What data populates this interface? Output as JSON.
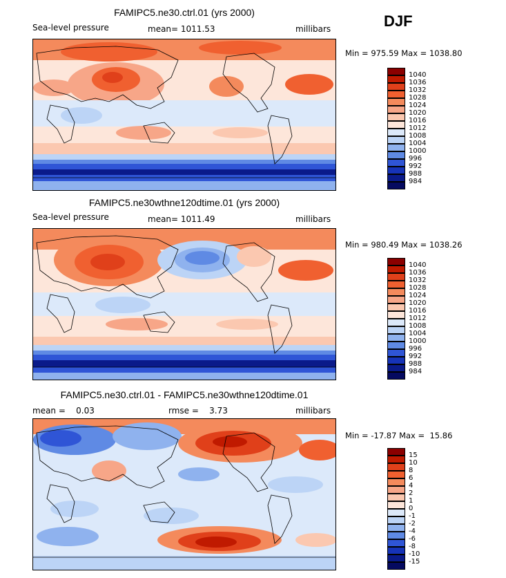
{
  "season": "DJF",
  "panels": [
    {
      "title": "FAMIPC5.ne30.ctrl.01 (yrs 2000)",
      "left_label": "Sea-level pressure",
      "center_label": "mean= 1011.53",
      "right_label": "millibars",
      "minmax": "Min = 975.59 Max = 1038.80",
      "colorbar_labels": [
        "1040",
        "1036",
        "1032",
        "1028",
        "1024",
        "1020",
        "1016",
        "1012",
        "1008",
        "1004",
        "1000",
        "996",
        "992",
        "988",
        "984"
      ]
    },
    {
      "title": "FAMIPC5.ne30wthne120dtime.01 (yrs 2000)",
      "left_label": "Sea-level pressure",
      "center_label": "mean= 1011.49",
      "right_label": "millibars",
      "minmax": "Min = 980.49 Max = 1038.26",
      "colorbar_labels": [
        "1040",
        "1036",
        "1032",
        "1028",
        "1024",
        "1020",
        "1016",
        "1012",
        "1008",
        "1004",
        "1000",
        "996",
        "992",
        "988",
        "984"
      ]
    },
    {
      "title": "FAMIPC5.ne30.ctrl.01 - FAMIPC5.ne30wthne120dtime.01",
      "left_label": "mean =    0.03",
      "center_label": "rmse =    3.73",
      "right_label": "millibars",
      "minmax": "Min = -17.87 Max =  15.86",
      "colorbar_labels": [
        "15",
        "10",
        "8",
        "6",
        "4",
        "2",
        "1",
        "0",
        "-1",
        "-2",
        "-4",
        "-6",
        "-8",
        "-10",
        "-15"
      ]
    }
  ],
  "colors": {
    "abs_palette": [
      "#8b0000",
      "#c01a00",
      "#e0401a",
      "#f06030",
      "#f48a5c",
      "#f7a688",
      "#fbc8b0",
      "#fde6da",
      "#dce9fa",
      "#bcd4f6",
      "#8fb2ee",
      "#5f8ae4",
      "#2f55d6",
      "#1633b8",
      "#0a1a8a",
      "#050a60"
    ],
    "diff_palette": [
      "#8b0000",
      "#c01a00",
      "#e0401a",
      "#f06030",
      "#f48a5c",
      "#f7a688",
      "#fbc8b0",
      "#fde6da",
      "#dce9fa",
      "#bcd4f6",
      "#8fb2ee",
      "#5f8ae4",
      "#2f55d6",
      "#1633b8",
      "#0a1a8a",
      "#050a60"
    ]
  }
}
